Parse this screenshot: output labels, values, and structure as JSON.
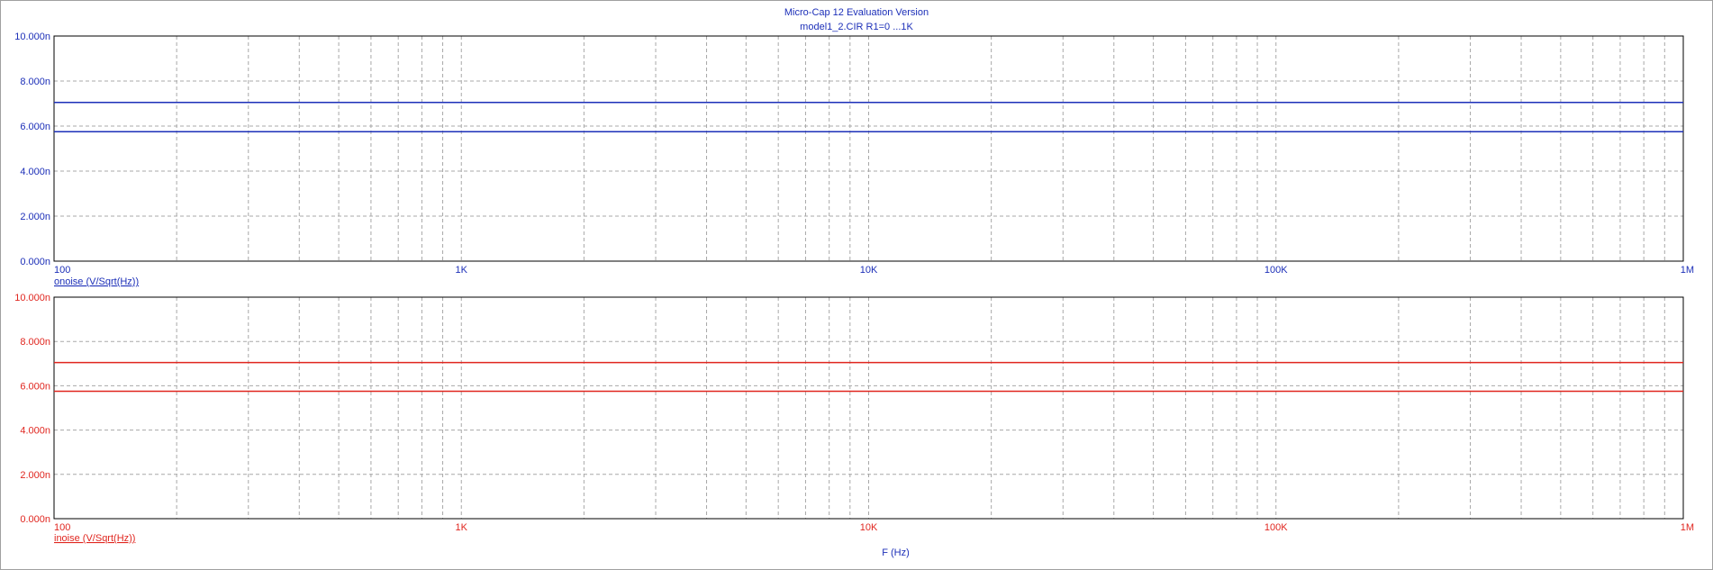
{
  "window": {
    "title": "Micro-Cap 12 Evaluation Version",
    "subtitle": "model1_2.CIR R1=0 ...1K"
  },
  "colors": {
    "title": "#1c2fb8",
    "axis_text_top": "#1c2fb8",
    "axis_text_bottom": "#e0261f",
    "grid": "#a8a8a8",
    "frame": "#000000",
    "trace_top": "#1c2fb8",
    "trace_bottom": "#e0261f"
  },
  "chart_data": [
    {
      "type": "line",
      "id": "top",
      "xscale": "log",
      "xlim": [
        100,
        1000000
      ],
      "ylim": [
        0,
        10
      ],
      "y_unit_suffix": "n",
      "x_tick_labels": [
        "100",
        "1K",
        "10K",
        "100K",
        "1M"
      ],
      "x_tick_values": [
        100,
        1000,
        10000,
        100000,
        1000000
      ],
      "y_tick_labels": [
        "0.000n",
        "2.000n",
        "4.000n",
        "6.000n",
        "8.000n",
        "10.000n"
      ],
      "y_tick_values": [
        0,
        2,
        4,
        6,
        8,
        10
      ],
      "legend": "onoise (V/Sqrt(Hz))",
      "grid": true,
      "series": [
        {
          "x": [
            100,
            1000000
          ],
          "values": [
            7.05,
            7.05
          ]
        },
        {
          "x": [
            100,
            1000000
          ],
          "values": [
            5.75,
            5.75
          ]
        }
      ]
    },
    {
      "type": "line",
      "id": "bottom",
      "xscale": "log",
      "xlim": [
        100,
        1000000
      ],
      "ylim": [
        0,
        10
      ],
      "y_unit_suffix": "n",
      "x_tick_labels": [
        "100",
        "1K",
        "10K",
        "100K",
        "1M"
      ],
      "x_tick_values": [
        100,
        1000,
        10000,
        100000,
        1000000
      ],
      "y_tick_labels": [
        "0.000n",
        "2.000n",
        "4.000n",
        "6.000n",
        "8.000n",
        "10.000n"
      ],
      "y_tick_values": [
        0,
        2,
        4,
        6,
        8,
        10
      ],
      "legend": "inoise (V/Sqrt(Hz))",
      "xlabel": "F (Hz)",
      "grid": true,
      "series": [
        {
          "x": [
            100,
            1000000
          ],
          "values": [
            7.05,
            7.05
          ]
        },
        {
          "x": [
            100,
            1000000
          ],
          "values": [
            5.75,
            5.75
          ]
        }
      ]
    }
  ]
}
